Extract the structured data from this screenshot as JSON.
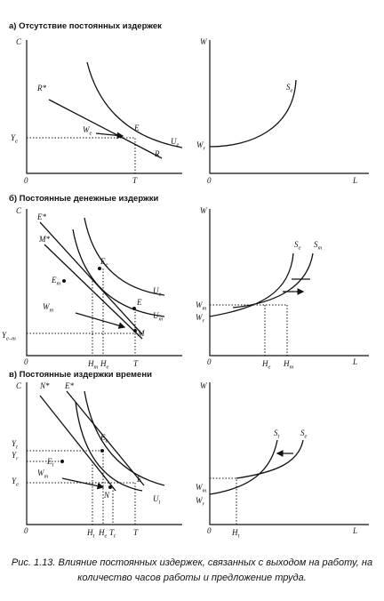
{
  "panels": [
    {
      "title": "а) Отсутствие постоянных издержек",
      "left_labels": [
        {
          "text": "C"
        },
        {
          "text": "R*"
        },
        {
          "text": "W",
          "sub": "e"
        },
        {
          "text": "E"
        },
        {
          "text": "R"
        },
        {
          "text": "U",
          "sub": "e"
        },
        {
          "text": "Y",
          "sub": "e"
        },
        {
          "text": "0"
        },
        {
          "text": "T"
        }
      ],
      "right_labels": [
        {
          "text": "W"
        },
        {
          "text": "S",
          "sub": "e"
        },
        {
          "text": "W",
          "sub": "r"
        },
        {
          "text": "0"
        },
        {
          "text": "L"
        }
      ]
    },
    {
      "title": "б) Постоянные денежные издержки",
      "left_labels": [
        {
          "text": "C"
        },
        {
          "text": "E*"
        },
        {
          "text": "M*"
        },
        {
          "text": "E",
          "sub": "e"
        },
        {
          "text": "E",
          "sub": "m"
        },
        {
          "text": "U",
          "sub": "e"
        },
        {
          "text": "E"
        },
        {
          "text": "W",
          "sub": "m"
        },
        {
          "text": "U",
          "sub": "m"
        },
        {
          "text": "M"
        },
        {
          "text": "Y",
          "sub": "e–m"
        },
        {
          "text": "0"
        },
        {
          "text": "H",
          "sub": "m"
        },
        {
          "text": "H",
          "sub": "e"
        },
        {
          "text": "T"
        }
      ],
      "right_labels": [
        {
          "text": "W"
        },
        {
          "text": "S",
          "sub": "e"
        },
        {
          "text": "S",
          "sub": "m"
        },
        {
          "text": "W",
          "sub": "m"
        },
        {
          "text": "W",
          "sub": "r"
        },
        {
          "text": "0"
        },
        {
          "text": "H",
          "sub": "e"
        },
        {
          "text": "H",
          "sub": "m"
        },
        {
          "text": "L"
        }
      ]
    },
    {
      "title": "в) Постоянные издержки времени",
      "left_labels": [
        {
          "text": "C"
        },
        {
          "text": "N*"
        },
        {
          "text": "E*"
        },
        {
          "text": "Y",
          "sub": "t"
        },
        {
          "text": "Y",
          "sub": "r"
        },
        {
          "text": "Y",
          "sub": "e"
        },
        {
          "text": "E",
          "sub": "e"
        },
        {
          "text": "E",
          "sub": "t"
        },
        {
          "text": "W",
          "sub": "m"
        },
        {
          "text": "N"
        },
        {
          "text": "E"
        },
        {
          "text": "U",
          "sub": "t"
        },
        {
          "text": "0"
        },
        {
          "text": "H",
          "sub": "t"
        },
        {
          "text": "H",
          "sub": "e"
        },
        {
          "text": "T",
          "sub": "t"
        },
        {
          "text": "T"
        }
      ],
      "right_labels": [
        {
          "text": "W"
        },
        {
          "text": "S",
          "sub": "t"
        },
        {
          "text": "S",
          "sub": "e"
        },
        {
          "text": "W",
          "sub": "m"
        },
        {
          "text": "W",
          "sub": "r"
        },
        {
          "text": "0"
        },
        {
          "text": "H",
          "sub": "t"
        },
        {
          "text": "L"
        }
      ]
    }
  ],
  "caption": {
    "lines": [
      "Рис. 1.13. Влияние постоянных издержек, связанных с выходом на работу, на",
      "количество часов работы и предложение труда."
    ]
  }
}
